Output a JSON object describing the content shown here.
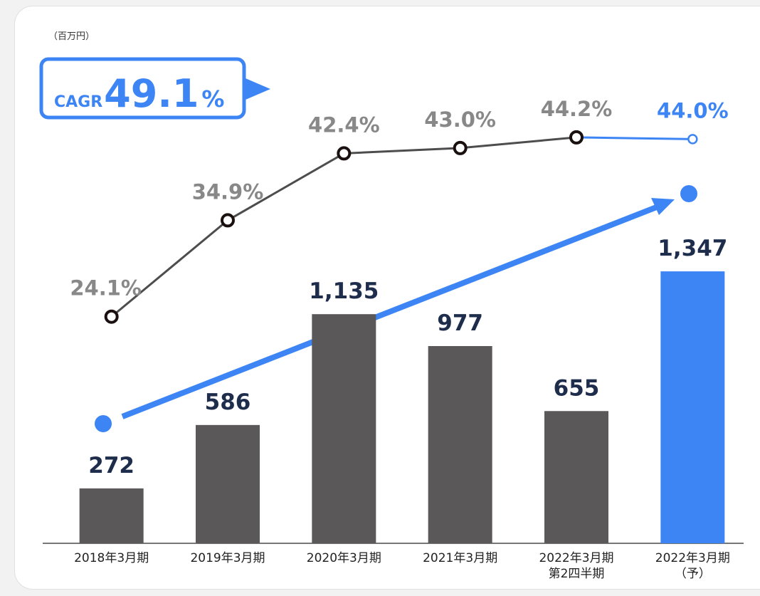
{
  "chart_data": {
    "type": "bar",
    "unit_label": "（百万円）",
    "categories": [
      "2018年3月期",
      "2019年3月期",
      "2020年3月期",
      "2021年3月期",
      "2022年3月期\n第2四半期",
      "2022年3月期\n（予）"
    ],
    "values": [
      272,
      586,
      1135,
      977,
      655,
      1347
    ],
    "value_labels": [
      "272",
      "586",
      "1,135",
      "977",
      "655",
      "1,347"
    ],
    "colors": [
      "#5a5858",
      "#5a5858",
      "#5a5858",
      "#5a5858",
      "#5a5858",
      "#3d85f5"
    ],
    "ylim": [
      0,
      2550
    ],
    "y2lim": [
      -1.3,
      56.4
    ],
    "series": [
      {
        "type": "line",
        "axis": "y2",
        "color": "#4d4d4d",
        "values": [
          24.1,
          34.9,
          42.4,
          43.0,
          44.2,
          44.0
        ],
        "value_labels": [
          "24.1%",
          "34.9%",
          "42.4%",
          "43.0%",
          "44.2%",
          "44.0%"
        ],
        "point_colors": [
          "#4d4d4d",
          "#4d4d4d",
          "#4d4d4d",
          "#4d4d4d",
          "#4d4d4d",
          "#3d85f5"
        ]
      }
    ],
    "annotation": {
      "label": "CAGR",
      "value": 49.1,
      "unit": "%"
    }
  }
}
